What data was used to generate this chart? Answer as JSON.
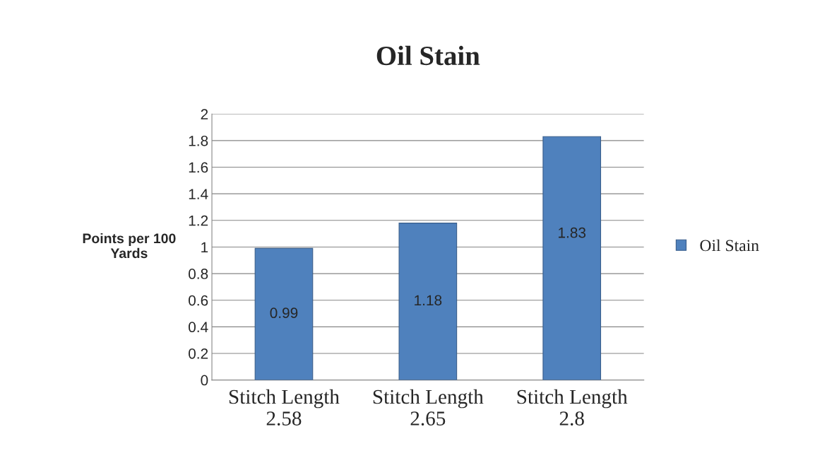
{
  "chart_data": {
    "type": "bar",
    "title": "Oil Stain",
    "ylabel": "Points per 100\nYards",
    "categories": [
      "Stitch Length\n2.58",
      "Stitch Length\n2.65",
      "Stitch Length\n2.8"
    ],
    "series": [
      {
        "name": "Oil Stain",
        "color": "#4f81bd",
        "values": [
          0.99,
          1.18,
          1.83
        ]
      }
    ],
    "ylim": [
      0,
      2
    ],
    "yticks": [
      0,
      0.2,
      0.4,
      0.6,
      0.8,
      1,
      1.2,
      1.4,
      1.6,
      1.8,
      2
    ],
    "grid": "y",
    "legend": "right",
    "data_labels": true
  }
}
